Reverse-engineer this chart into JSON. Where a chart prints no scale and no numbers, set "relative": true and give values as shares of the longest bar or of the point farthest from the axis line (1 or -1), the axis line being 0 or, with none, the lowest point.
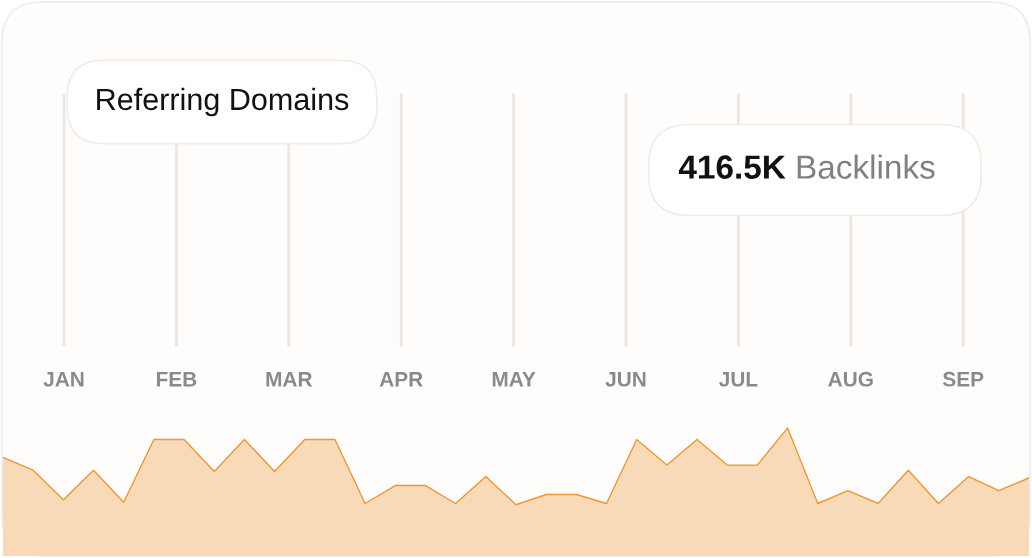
{
  "chart_data": [
    {
      "type": "other",
      "annotations": [
        "Referring Domains",
        "416.5K Backlinks",
        "JAN",
        "FEB",
        "MAR",
        "APR",
        "MAY",
        "JUN",
        "JUL",
        "AUG",
        "SEP"
      ]
    },
    {
      "type": "area",
      "relative": true,
      "categories": [
        null,
        null,
        null,
        null,
        null,
        null,
        null,
        null,
        null,
        null,
        null,
        null,
        null,
        null,
        null,
        null,
        null,
        null,
        null,
        null,
        null,
        null,
        null,
        null,
        null,
        null,
        null,
        null,
        null,
        null,
        null,
        null,
        null,
        null,
        null
      ],
      "series": [
        {
          "color": "#ef9635",
          "values": [
            0.77,
            0.67,
            0.44,
            0.67,
            0.42,
            0.91,
            0.91,
            0.66,
            0.91,
            0.66,
            0.91,
            0.91,
            0.41,
            0.55,
            0.55,
            0.41,
            0.62,
            0.4,
            0.48,
            0.48,
            0.41,
            0.91,
            0.71,
            0.91,
            0.71,
            0.71,
            1,
            0.41,
            0.51,
            0.41,
            0.67,
            0.41,
            0.62,
            0.51,
            0.61
          ]
        }
      ]
    }
  ]
}
